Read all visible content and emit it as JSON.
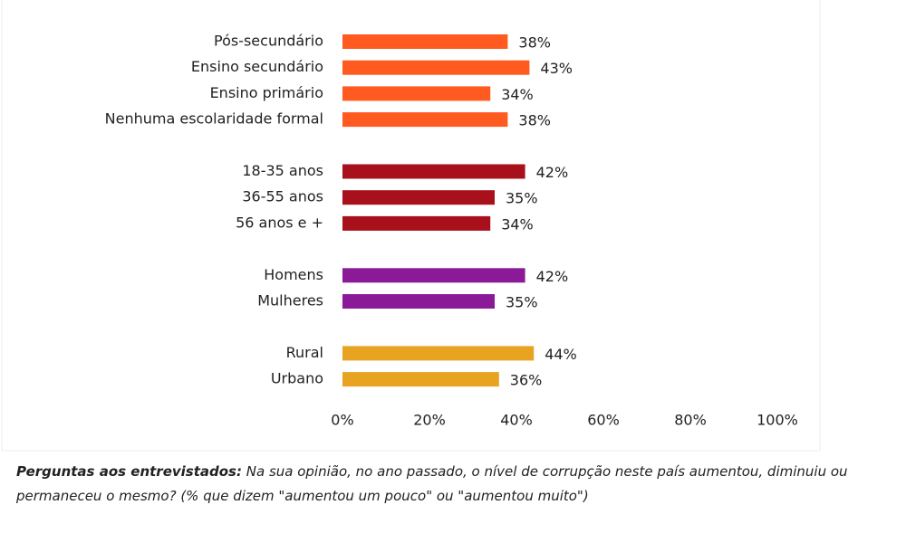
{
  "chart_data": {
    "type": "bar",
    "orientation": "horizontal",
    "categories": [
      "Pós-secundário",
      "Ensino secundário",
      "Ensino primário",
      "Nenhuma escolaridade formal",
      null,
      "18-35 anos",
      "36-55 anos",
      "56 anos e +",
      null,
      "Homens",
      "Mulheres",
      null,
      "Rural",
      "Urbano"
    ],
    "values": [
      38,
      43,
      34,
      38,
      null,
      42,
      35,
      34,
      null,
      42,
      35,
      null,
      44,
      36
    ],
    "value_labels": [
      "38%",
      "43%",
      "34%",
      "38%",
      null,
      "42%",
      "35%",
      "34%",
      null,
      "42%",
      "35%",
      null,
      "44%",
      "36%"
    ],
    "colors": [
      "#ff5a1f",
      "#ff5a1f",
      "#ff5a1f",
      "#ff5a1f",
      null,
      "#a8101c",
      "#a8101c",
      "#a8101c",
      null,
      "#8a1a98",
      "#8a1a98",
      null,
      "#e8a321",
      "#e8a321"
    ],
    "xlim": [
      0,
      100
    ],
    "xticks": [
      {
        "value": 0,
        "label": "0%"
      },
      {
        "value": 20,
        "label": "20%"
      },
      {
        "value": 40,
        "label": "40%"
      },
      {
        "value": 60,
        "label": "60%"
      },
      {
        "value": 80,
        "label": "80%"
      },
      {
        "value": 100,
        "label": "100%"
      }
    ],
    "grid": false,
    "question_label": "Perguntas aos entrevistados:",
    "question": "Na sua opinião, no ano passado, o nível de corrupção neste país aumentou, diminuiu ou permaneceu o mesmo? (% que dizem \"aumentou um pouco\" ou \"aumentou muito\")"
  }
}
